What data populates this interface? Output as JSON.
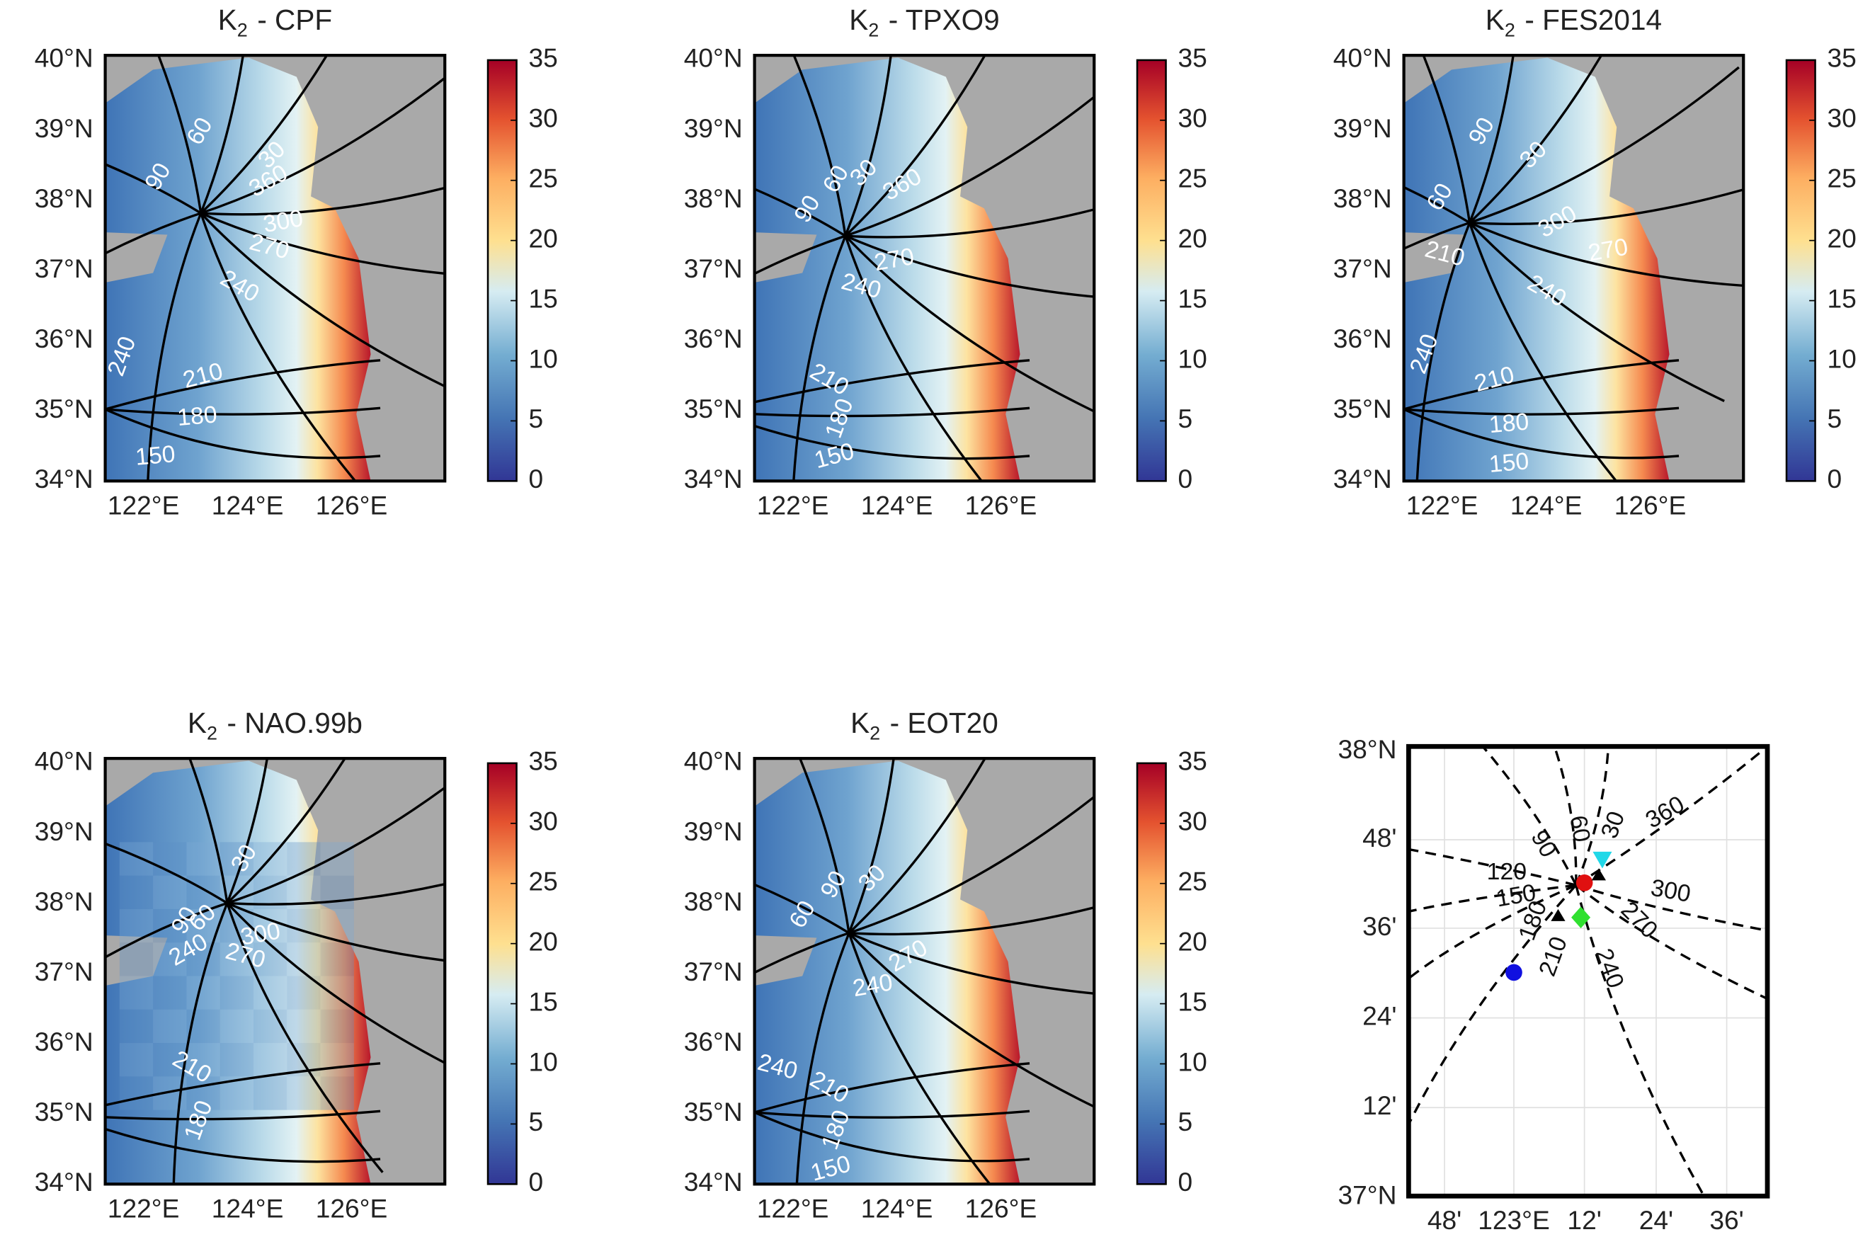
{
  "panels": [
    {
      "title": {
        "base": "K",
        "sub": "2",
        "rest": "- CPF"
      },
      "contour_labels": [
        60,
        90,
        30,
        360,
        300,
        270,
        240,
        240,
        210,
        180,
        150
      ]
    },
    {
      "title": {
        "base": "K",
        "sub": "2",
        "rest": "- TPXO9"
      },
      "contour_labels": [
        60,
        90,
        30,
        360,
        270,
        240,
        210,
        180,
        150
      ]
    },
    {
      "title": {
        "base": "K",
        "sub": "2",
        "rest": "- FES2014"
      },
      "contour_labels": [
        90,
        60,
        30,
        300,
        270,
        210,
        240,
        240,
        210,
        180,
        150
      ]
    },
    {
      "title": {
        "base": "K",
        "sub": "2",
        "rest": "- NAO.99b"
      },
      "contour_labels": [
        30,
        90,
        60,
        240,
        300,
        270,
        210,
        180
      ]
    },
    {
      "title": {
        "base": "K",
        "sub": "2",
        "rest": "- EOT20"
      },
      "contour_labels": [
        90,
        60,
        30,
        270,
        240,
        240,
        210,
        180,
        150
      ]
    }
  ],
  "map_axes": {
    "lat_labels": [
      "40°N",
      "39°N",
      "38°N",
      "37°N",
      "36°N",
      "35°N",
      "34°N"
    ],
    "lon_labels": [
      "122°E",
      "124°E",
      "126°E"
    ]
  },
  "colorbar": {
    "lim": [
      0,
      35
    ],
    "ticks": [
      0,
      5,
      10,
      15,
      20,
      25,
      30,
      35
    ]
  },
  "inset": {
    "lat_labels": [
      "38°N",
      "48'",
      "36'",
      "24'",
      "12'",
      "37°N"
    ],
    "lon_labels": [
      "48'",
      "123°E",
      "12'",
      "24'",
      "36'"
    ],
    "contour_labels": [
      90,
      60,
      30,
      360,
      120,
      300,
      150,
      270,
      180,
      210,
      240
    ]
  }
}
